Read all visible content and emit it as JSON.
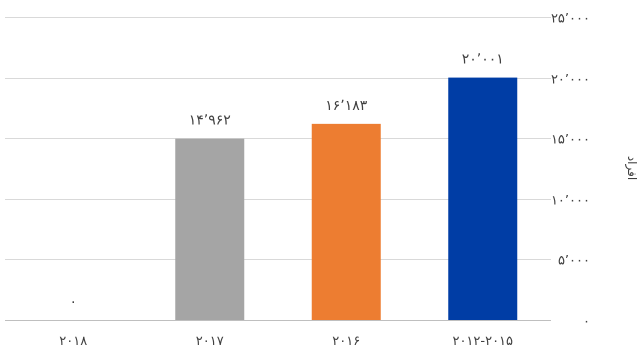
{
  "chart_data": {
    "type": "bar",
    "categories": [
      "2018",
      "2017",
      "2016",
      "2012-2015"
    ],
    "category_labels": [
      "۲۰۱۸",
      "۲۰۱۷",
      "۲۰۱۶",
      "۲۰۱۲-۲۰۱۵"
    ],
    "values": [
      0,
      14962,
      16183,
      20001
    ],
    "data_labels": [
      "۰",
      "۱۴٬۹۶۲",
      "۱۶٬۱۸۳",
      "۲۰٬۰۰۱"
    ],
    "bar_colors": [
      "#a5a5a5",
      "#a5a5a5",
      "#ed7d31",
      "#003da5"
    ],
    "ylim": [
      0,
      25000
    ],
    "yticks": [
      0,
      5000,
      10000,
      15000,
      20000,
      25000
    ],
    "ytick_labels": [
      "۰",
      "۵٬۰۰۰",
      "۱۰٬۰۰۰",
      "۱۵٬۰۰۰",
      "۲۰٬۰۰۰",
      "۲۵٬۰۰۰"
    ],
    "ylabel": "افراد",
    "y_axis_position": "right",
    "grid": true,
    "title": "",
    "xlabel": ""
  }
}
